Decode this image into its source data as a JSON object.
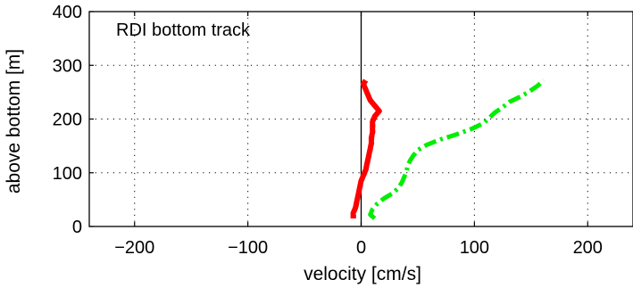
{
  "chart_data": {
    "type": "line",
    "title": "",
    "annotation": "RDI bottom track",
    "xlabel": "velocity [cm/s]",
    "ylabel": "above bottom [m]",
    "xlim": [
      -240,
      240
    ],
    "ylim": [
      0,
      400
    ],
    "xticks": [
      -200,
      -100,
      0,
      100,
      200
    ],
    "xtick_labels": [
      "−200",
      "−100",
      "0",
      "100",
      "200"
    ],
    "yticks": [
      0,
      100,
      200,
      300,
      400
    ],
    "ytick_labels": [
      "0",
      "100",
      "200",
      "300",
      "400"
    ],
    "grid": true,
    "zero_line": true,
    "series": [
      {
        "color": "#ff0000",
        "style": "solid-thick",
        "points": [
          [
            -7,
            15
          ],
          [
            -7,
            25
          ],
          [
            -5,
            35
          ],
          [
            -4,
            45
          ],
          [
            -3,
            55
          ],
          [
            -2,
            65
          ],
          [
            -1,
            75
          ],
          [
            0,
            85
          ],
          [
            2,
            95
          ],
          [
            4,
            105
          ],
          [
            5,
            115
          ],
          [
            6,
            125
          ],
          [
            7,
            135
          ],
          [
            8,
            145
          ],
          [
            9,
            155
          ],
          [
            9,
            165
          ],
          [
            10,
            175
          ],
          [
            10,
            185
          ],
          [
            10,
            195
          ],
          [
            12,
            205
          ],
          [
            16,
            215
          ],
          [
            12,
            225
          ],
          [
            8,
            235
          ],
          [
            6,
            245
          ],
          [
            4,
            255
          ],
          [
            2,
            265
          ],
          [
            4,
            272
          ]
        ]
      },
      {
        "color": "#00ee00",
        "style": "dash-dot-thick",
        "points": [
          [
            12,
            15
          ],
          [
            8,
            22
          ],
          [
            10,
            32
          ],
          [
            14,
            42
          ],
          [
            20,
            52
          ],
          [
            28,
            62
          ],
          [
            33,
            72
          ],
          [
            36,
            82
          ],
          [
            38,
            92
          ],
          [
            40,
            102
          ],
          [
            41,
            112
          ],
          [
            43,
            122
          ],
          [
            46,
            132
          ],
          [
            50,
            142
          ],
          [
            58,
            152
          ],
          [
            70,
            162
          ],
          [
            85,
            172
          ],
          [
            98,
            182
          ],
          [
            108,
            192
          ],
          [
            113,
            202
          ],
          [
            118,
            212
          ],
          [
            125,
            222
          ],
          [
            131,
            232
          ],
          [
            141,
            242
          ],
          [
            149,
            252
          ],
          [
            156,
            262
          ],
          [
            161,
            272
          ]
        ]
      }
    ]
  }
}
